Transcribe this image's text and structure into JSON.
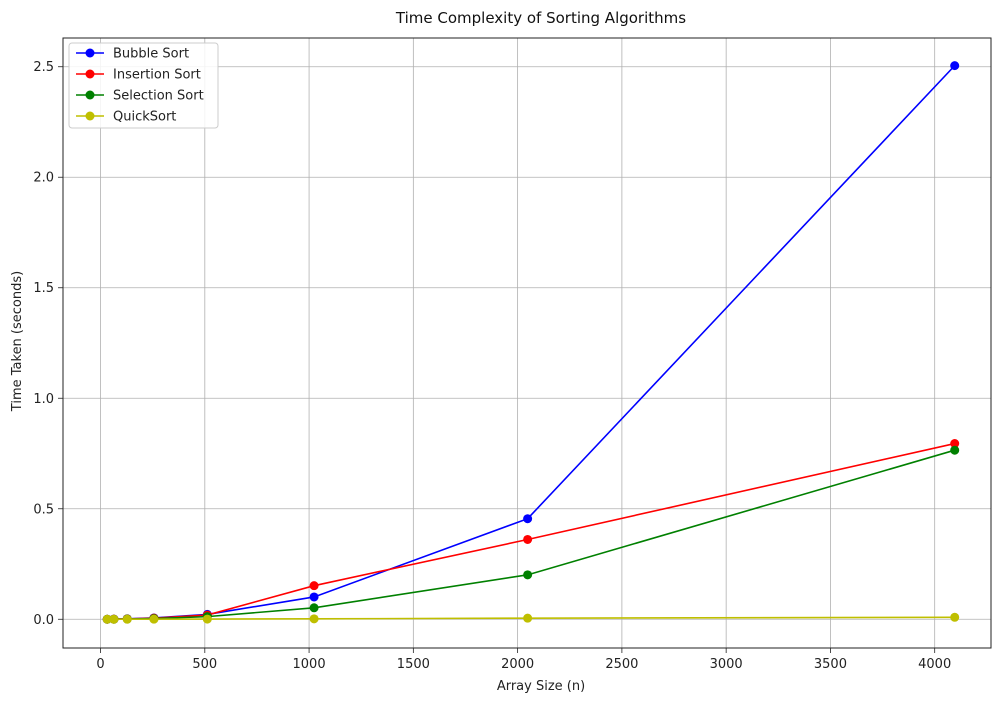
{
  "chart_data": {
    "type": "line",
    "title": "Time Complexity of Sorting Algorithms",
    "xlabel": "Array Size (n)",
    "ylabel": "Time Taken (seconds)",
    "x": [
      32,
      64,
      128,
      256,
      512,
      1024,
      2048,
      4096
    ],
    "xlim": [
      -180,
      4270
    ],
    "ylim": [
      -0.13,
      2.63
    ],
    "xticks": [
      0,
      500,
      1000,
      1500,
      2000,
      2500,
      3000,
      3500,
      4000
    ],
    "yticks": [
      0.0,
      0.5,
      1.0,
      1.5,
      2.0,
      2.5
    ],
    "xtick_labels": [
      "0",
      "500",
      "1000",
      "1500",
      "2000",
      "2500",
      "3000",
      "3500",
      "4000"
    ],
    "ytick_labels": [
      "0.0",
      "0.5",
      "1.0",
      "1.5",
      "2.0",
      "2.5"
    ],
    "grid": true,
    "legend_position": "top-left",
    "series": [
      {
        "name": "Bubble Sort",
        "color": "#0000ff",
        "values": [
          0.0002,
          0.0007,
          0.002,
          0.006,
          0.022,
          0.101,
          0.455,
          2.505
        ]
      },
      {
        "name": "Insertion Sort",
        "color": "#ff0000",
        "values": [
          0.0001,
          0.0004,
          0.0015,
          0.005,
          0.019,
          0.152,
          0.361,
          0.795
        ]
      },
      {
        "name": "Selection Sort",
        "color": "#008000",
        "values": [
          0.0001,
          0.0003,
          0.001,
          0.003,
          0.012,
          0.052,
          0.201,
          0.765
        ]
      },
      {
        "name": "QuickSort",
        "color": "#bfbf00",
        "values": [
          0.0001,
          0.0001,
          0.0002,
          0.0004,
          0.0009,
          0.002,
          0.005,
          0.009
        ]
      }
    ]
  }
}
